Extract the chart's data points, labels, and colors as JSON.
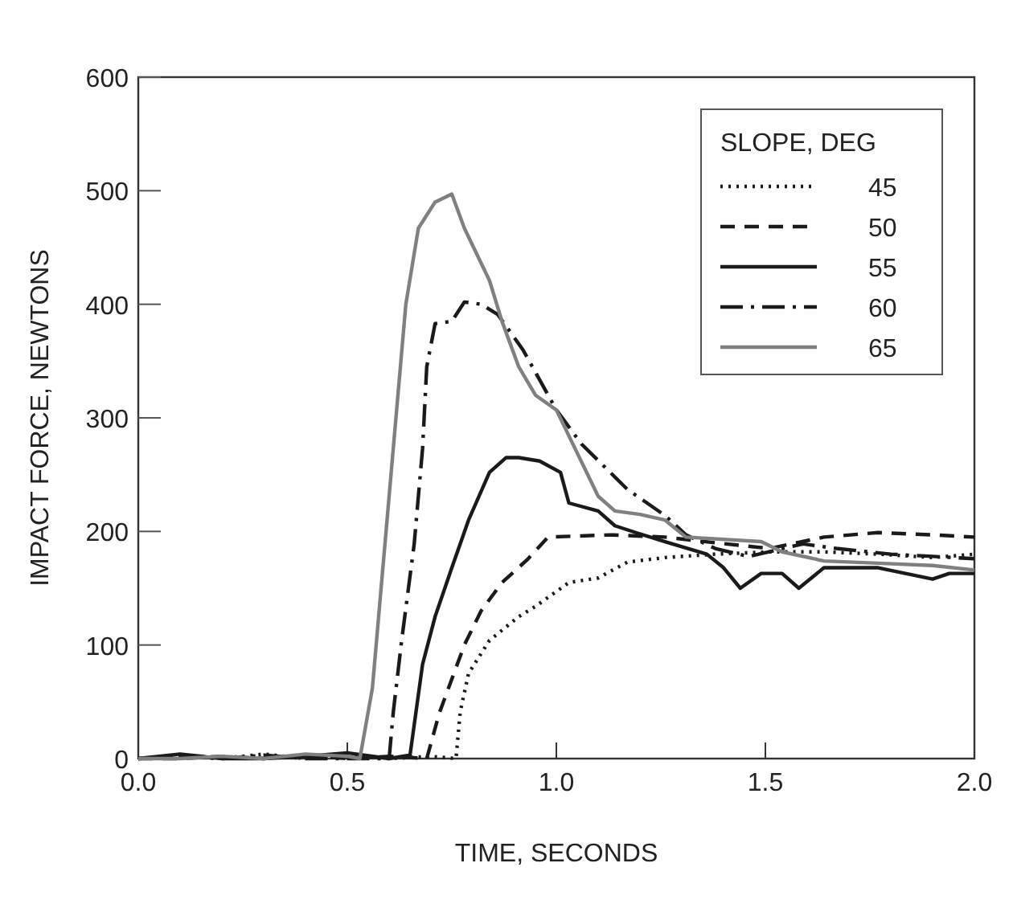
{
  "chart_data": {
    "type": "line",
    "xlabel": "TIME, SECONDS",
    "ylabel": "IMPACT FORCE, NEWTONS",
    "legend_title": "SLOPE, DEG",
    "legend": "top right",
    "grid": false,
    "xlim": [
      0,
      2
    ],
    "ylim": [
      0,
      600
    ],
    "xticks": [
      {
        "value": 0,
        "label": "0.0"
      },
      {
        "value": 0.5,
        "label": "0.5"
      },
      {
        "value": 1,
        "label": "1.0"
      },
      {
        "value": 1.5,
        "label": "1.5"
      },
      {
        "value": 2,
        "label": "2.0"
      }
    ],
    "yticks": [
      0,
      100,
      200,
      300,
      400,
      500,
      600
    ],
    "series": [
      {
        "name": "45",
        "color": "#1a1a1a",
        "line_style": "dotted",
        "x": [
          0,
          0.1,
          0.2,
          0.3,
          0.4,
          0.5,
          0.6,
          0.7,
          0.76,
          0.77,
          0.79,
          0.84,
          0.91,
          0.95,
          1.03,
          1.1,
          1.17,
          1.26,
          1.38,
          1.51,
          1.64,
          1.77,
          1.9,
          2.0
        ],
        "values": [
          0,
          3,
          0,
          4,
          0,
          3,
          0,
          2,
          0,
          41,
          75,
          104,
          125,
          134,
          155,
          159,
          173,
          177,
          180,
          182,
          182,
          180,
          177,
          180
        ]
      },
      {
        "name": "50",
        "color": "#1a1a1a",
        "line_style": "dashed",
        "x": [
          0,
          0.1,
          0.2,
          0.3,
          0.4,
          0.5,
          0.6,
          0.69,
          0.72,
          0.75,
          0.78,
          0.82,
          0.87,
          0.93,
          0.98,
          1.13,
          1.26,
          1.38,
          1.51,
          1.64,
          1.77,
          1.9,
          2.0
        ],
        "values": [
          0,
          0,
          2,
          0,
          3,
          0,
          2,
          0,
          40,
          70,
          100,
          130,
          155,
          175,
          195,
          197,
          195,
          190,
          185,
          195,
          199,
          197,
          195
        ]
      },
      {
        "name": "55",
        "color": "#1a1a1a",
        "line_style": "solid",
        "x": [
          0,
          0.1,
          0.2,
          0.3,
          0.4,
          0.5,
          0.6,
          0.65,
          0.68,
          0.71,
          0.75,
          0.79,
          0.84,
          0.88,
          0.91,
          0.96,
          1.01,
          1.03,
          1.1,
          1.14,
          1.19,
          1.26,
          1.36,
          1.4,
          1.44,
          1.49,
          1.54,
          1.58,
          1.64,
          1.77,
          1.9,
          1.94,
          2.0
        ],
        "values": [
          0,
          4,
          0,
          0,
          2,
          5,
          0,
          3,
          83,
          125,
          168,
          210,
          252,
          265,
          265,
          262,
          252,
          225,
          218,
          205,
          199,
          191,
          180,
          168,
          150,
          163,
          163,
          150,
          168,
          168,
          158,
          163,
          163
        ]
      },
      {
        "name": "60",
        "color": "#1a1a1a",
        "line_style": "dashdot",
        "x": [
          0,
          0.1,
          0.2,
          0.3,
          0.4,
          0.5,
          0.6,
          0.61,
          0.63,
          0.66,
          0.68,
          0.69,
          0.71,
          0.75,
          0.78,
          0.82,
          0.86,
          0.92,
          1.0,
          1.06,
          1.17,
          1.26,
          1.31,
          1.38,
          1.46,
          1.59,
          1.67,
          1.8,
          1.9,
          2.0
        ],
        "values": [
          0,
          2,
          0,
          3,
          0,
          0,
          0,
          41,
          104,
          189,
          273,
          345,
          383,
          385,
          402,
          400,
          391,
          360,
          307,
          277,
          237,
          214,
          197,
          185,
          178,
          189,
          185,
          180,
          178,
          176
        ]
      },
      {
        "name": "65",
        "color": "#808080",
        "line_style": "solid",
        "x": [
          0,
          0.1,
          0.2,
          0.3,
          0.4,
          0.5,
          0.53,
          0.56,
          0.6,
          0.64,
          0.67,
          0.71,
          0.75,
          0.78,
          0.84,
          0.87,
          0.91,
          0.95,
          1.0,
          1.1,
          1.14,
          1.2,
          1.26,
          1.31,
          1.49,
          1.54,
          1.64,
          1.77,
          1.9,
          2.0
        ],
        "values": [
          0,
          0,
          2,
          0,
          4,
          2,
          0,
          62,
          231,
          400,
          467,
          490,
          497,
          467,
          421,
          385,
          345,
          320,
          307,
          231,
          218,
          215,
          210,
          195,
          191,
          182,
          174,
          172,
          170,
          166
        ]
      }
    ]
  }
}
